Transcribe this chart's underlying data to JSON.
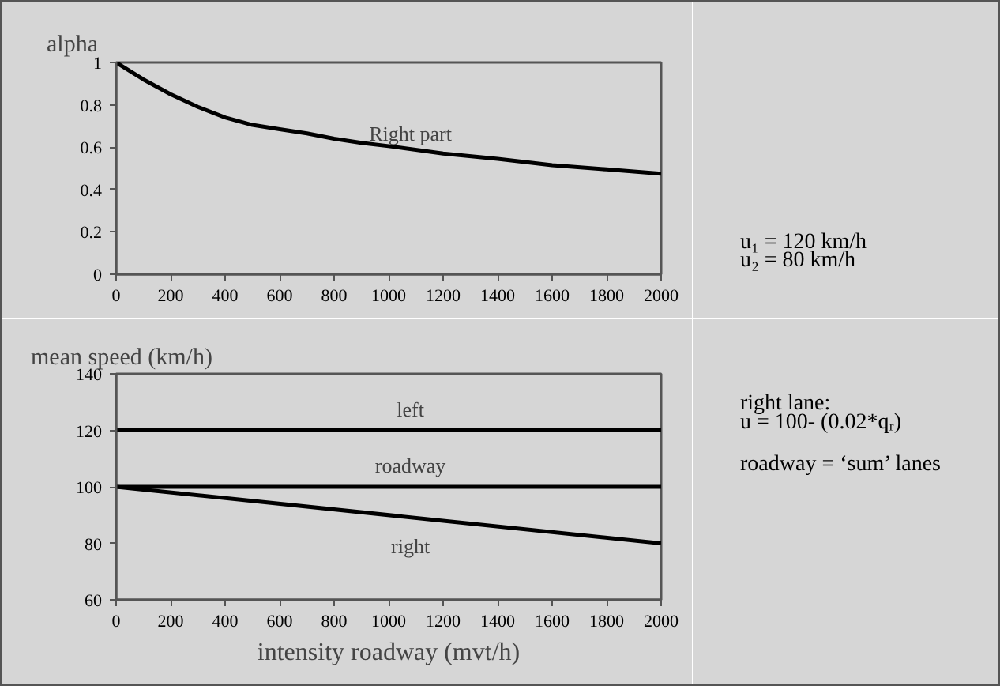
{
  "chart_data": [
    {
      "type": "line",
      "ylabel": "alpha",
      "x": [
        0,
        100,
        200,
        300,
        400,
        500,
        600,
        700,
        800,
        900,
        1000,
        1200,
        1400,
        1600,
        1800,
        2000
      ],
      "series": [
        {
          "name": "Right part",
          "color": "#000000",
          "values": [
            1,
            0.92,
            0.85,
            0.79,
            0.74,
            0.705,
            0.685,
            0.665,
            0.64,
            0.62,
            0.605,
            0.57,
            0.545,
            0.515,
            0.495,
            0.475
          ]
        }
      ],
      "xlim": [
        0,
        2000
      ],
      "xticks": [
        0,
        200,
        400,
        600,
        800,
        1000,
        1200,
        1400,
        1600,
        1800,
        2000
      ],
      "ylim": [
        0,
        1
      ],
      "yticks": [
        0,
        0.2,
        0.4,
        0.6,
        0.8,
        1
      ],
      "grid": false,
      "marker": "none",
      "line_style": "solid",
      "annotations": [
        "u₁ = 120 km/h",
        "u₂ = 80 km/h"
      ]
    },
    {
      "type": "line",
      "ylabel": "mean speed (km/h)",
      "xlabel": "intensity roadway (mvt/h)",
      "x": [
        0,
        2000
      ],
      "series": [
        {
          "name": "left",
          "color": "#000000",
          "values": [
            120,
            120
          ]
        },
        {
          "name": "roadway",
          "color": "#000000",
          "values": [
            100,
            100
          ]
        },
        {
          "name": "right",
          "color": "#000000",
          "values": [
            100,
            80
          ]
        }
      ],
      "xlim": [
        0,
        2000
      ],
      "xticks": [
        0,
        200,
        400,
        600,
        800,
        1000,
        1200,
        1400,
        1600,
        1800,
        2000
      ],
      "ylim": [
        60,
        140
      ],
      "yticks": [
        60,
        80,
        100,
        120,
        140
      ],
      "grid": false,
      "marker": "none",
      "line_style": "solid",
      "annotations": [
        "right lane:",
        "u = 100- (0.02*qᵣ)",
        "roadway  = ‘sum’ lanes"
      ]
    }
  ]
}
